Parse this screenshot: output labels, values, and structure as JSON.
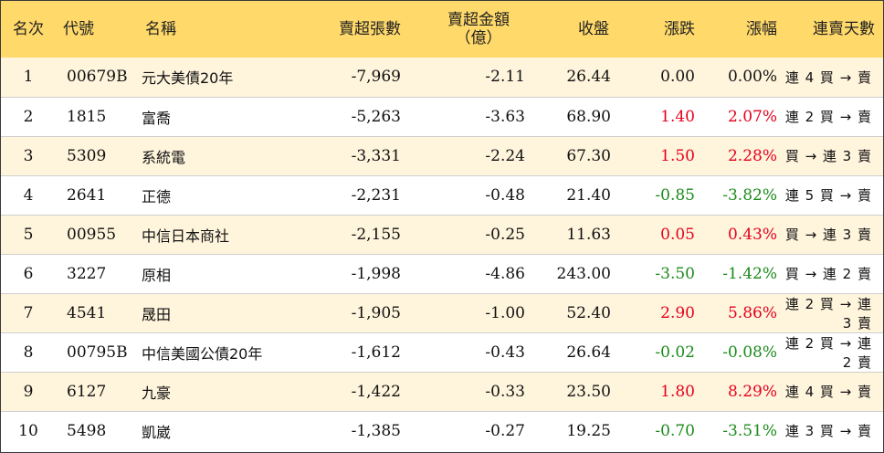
{
  "colors": {
    "header_bg": "#ffd96a",
    "stripe_bg": "#fff4dc",
    "up": "#e4001c",
    "down": "#1a8a1a",
    "flat": "#111111"
  },
  "header": {
    "rank": "名次",
    "code": "代號",
    "name": "名稱",
    "net_sell_volume": "賣超張數",
    "net_sell_amount_line1": "賣超金額",
    "net_sell_amount_line2": "（億）",
    "close": "收盤",
    "change": "漲跌",
    "change_pct": "漲幅",
    "consecutive_days": "連賣天數"
  },
  "rows": [
    {
      "rank": "1",
      "code": "00679B",
      "name": "元大美債20年",
      "volume": "-7,969",
      "amount": "-2.11",
      "close": "26.44",
      "change": "0.00",
      "pct": "0.00%",
      "dir": "flat",
      "days": "連 4 買 → 賣"
    },
    {
      "rank": "2",
      "code": "1815",
      "name": "富喬",
      "volume": "-5,263",
      "amount": "-3.63",
      "close": "68.90",
      "change": "1.40",
      "pct": "2.07%",
      "dir": "up",
      "days": "連 2 買 → 賣"
    },
    {
      "rank": "3",
      "code": "5309",
      "name": "系統電",
      "volume": "-3,331",
      "amount": "-2.24",
      "close": "67.30",
      "change": "1.50",
      "pct": "2.28%",
      "dir": "up",
      "days": "買 → 連 3 賣"
    },
    {
      "rank": "4",
      "code": "2641",
      "name": "正德",
      "volume": "-2,231",
      "amount": "-0.48",
      "close": "21.40",
      "change": "-0.85",
      "pct": "-3.82%",
      "dir": "down",
      "days": "連 5 買 → 賣"
    },
    {
      "rank": "5",
      "code": "00955",
      "name": "中信日本商社",
      "volume": "-2,155",
      "amount": "-0.25",
      "close": "11.63",
      "change": "0.05",
      "pct": "0.43%",
      "dir": "up",
      "days": "買 → 連 3 賣"
    },
    {
      "rank": "6",
      "code": "3227",
      "name": "原相",
      "volume": "-1,998",
      "amount": "-4.86",
      "close": "243.00",
      "change": "-3.50",
      "pct": "-1.42%",
      "dir": "down",
      "days": "買 → 連 2 賣"
    },
    {
      "rank": "7",
      "code": "4541",
      "name": "晟田",
      "volume": "-1,905",
      "amount": "-1.00",
      "close": "52.40",
      "change": "2.90",
      "pct": "5.86%",
      "dir": "up",
      "days": "連 2 買 → 連 3 賣"
    },
    {
      "rank": "8",
      "code": "00795B",
      "name": "中信美國公債20年",
      "volume": "-1,612",
      "amount": "-0.43",
      "close": "26.64",
      "change": "-0.02",
      "pct": "-0.08%",
      "dir": "down",
      "days": "連 2 買 → 連 2 賣"
    },
    {
      "rank": "9",
      "code": "6127",
      "name": "九豪",
      "volume": "-1,422",
      "amount": "-0.33",
      "close": "23.50",
      "change": "1.80",
      "pct": "8.29%",
      "dir": "up",
      "days": "連 4 買 → 賣"
    },
    {
      "rank": "10",
      "code": "5498",
      "name": "凱崴",
      "volume": "-1,385",
      "amount": "-0.27",
      "close": "19.25",
      "change": "-0.70",
      "pct": "-3.51%",
      "dir": "down",
      "days": "連 3 買 → 賣"
    }
  ]
}
